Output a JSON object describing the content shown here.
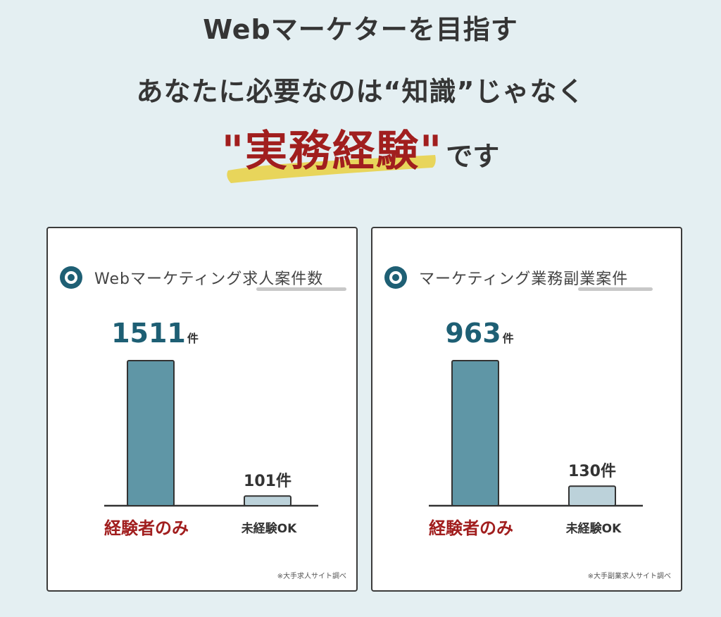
{
  "heading": {
    "line1": "Webマーケターを目指す",
    "line2": "あなたに必要なのは“知識”じゃなく",
    "emphasis": "\"実務経験\"",
    "tail": "です"
  },
  "colors": {
    "background": "#e4eff2",
    "emphasis_red": "#a11e1e",
    "highlight_yellow": "#e8d24a",
    "bar_dark": "#5f96a6",
    "bar_light": "#bcd2da",
    "value_teal": "#1e5f74"
  },
  "chart_data": [
    {
      "type": "bar",
      "title": "Webマーケティング求人案件数",
      "categories": [
        "経験者のみ",
        "未経験OK"
      ],
      "values": [
        1511,
        101
      ],
      "value_labels": [
        "1511",
        "101件"
      ],
      "unit": "件",
      "note": "※大手求人サイト調べ"
    },
    {
      "type": "bar",
      "title": "マーケティング業務副業案件",
      "categories": [
        "経験者のみ",
        "未経験OK"
      ],
      "values": [
        963,
        130
      ],
      "value_labels": [
        "963",
        "130件"
      ],
      "unit": "件",
      "note": "※大手副業求人サイト調べ"
    }
  ]
}
